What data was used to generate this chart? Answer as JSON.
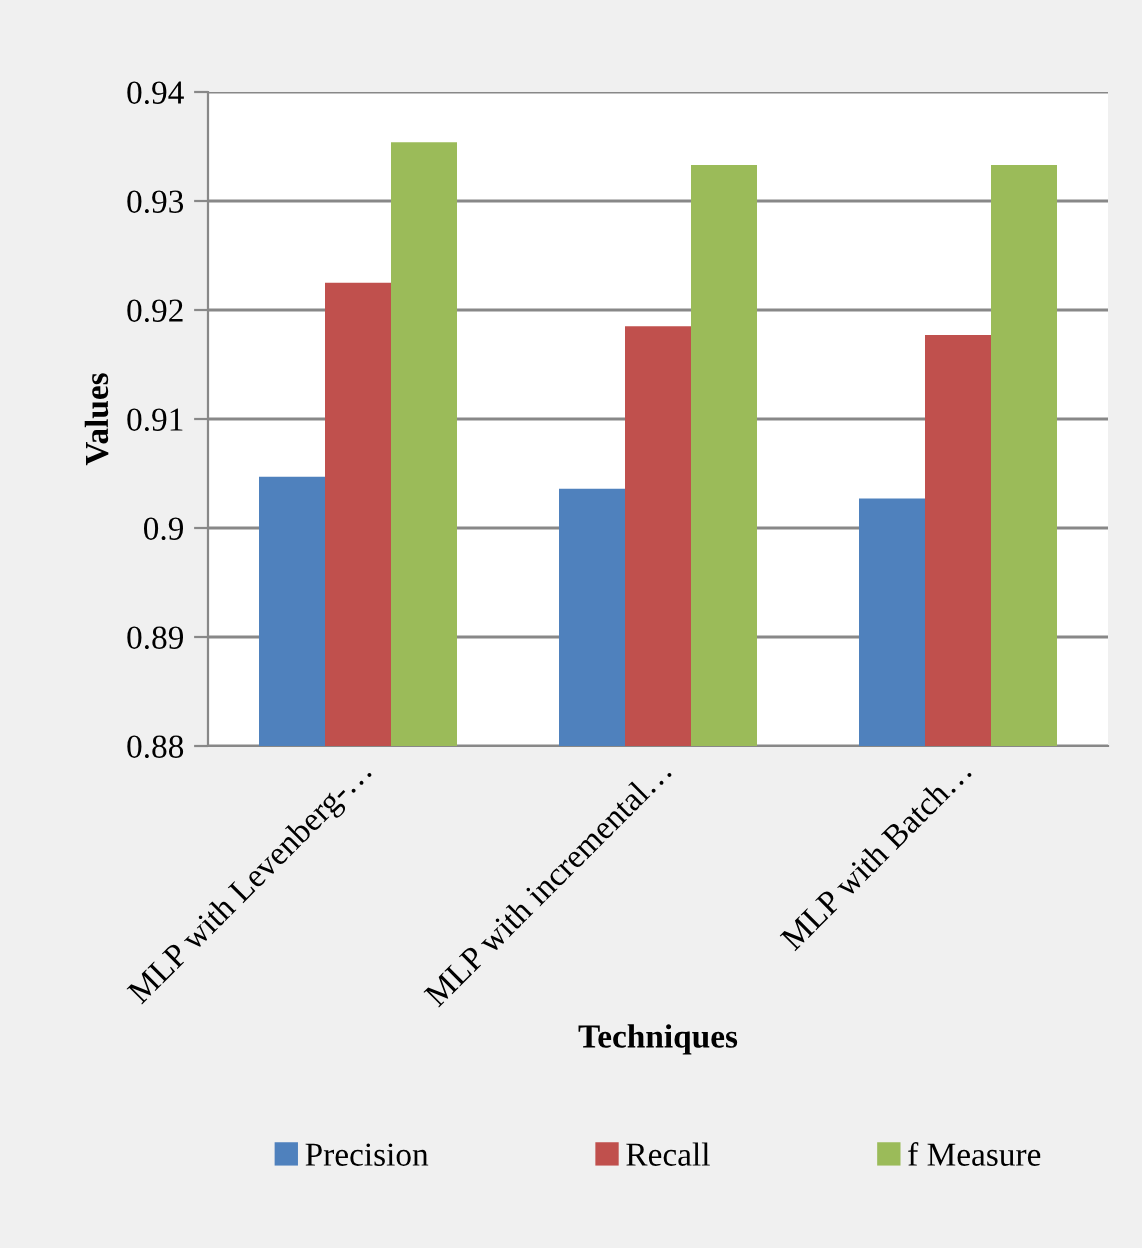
{
  "chart_data": {
    "type": "bar",
    "xlabel": "Techniques",
    "ylabel": "Values",
    "categories": [
      "MLP with Levenberg-…",
      "MLP with incremental…",
      "MLP with Batch…"
    ],
    "series": [
      {
        "name": "Precision",
        "color": "#4f81bd",
        "values": [
          0.9047,
          0.9036,
          0.9027
        ]
      },
      {
        "name": "Recall",
        "color": "#c0504d",
        "values": [
          0.9225,
          0.9185,
          0.9177
        ]
      },
      {
        "name": "f Measure",
        "color": "#9bbb59",
        "values": [
          0.9354,
          0.9333,
          0.9333
        ]
      }
    ],
    "ylim": [
      0.88,
      0.94
    ],
    "yticks": [
      0.88,
      0.89,
      0.9,
      0.91,
      0.92,
      0.93,
      0.94
    ],
    "grid": "y",
    "legend": "bottom"
  }
}
